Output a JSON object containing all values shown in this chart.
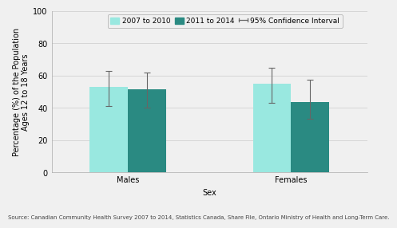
{
  "groups": [
    "Males",
    "Females"
  ],
  "series": [
    "2007 to 2010",
    "2011 to 2014"
  ],
  "values": [
    [
      53.0,
      51.5
    ],
    [
      55.0,
      43.5
    ]
  ],
  "ci_low_abs": [
    [
      41.0,
      40.0
    ],
    [
      43.0,
      33.5
    ]
  ],
  "ci_high_abs": [
    [
      63.0,
      62.0
    ],
    [
      65.0,
      57.5
    ]
  ],
  "bar_colors": [
    "#99e8e0",
    "#2a8a82"
  ],
  "bar_width": 0.35,
  "group_positions": [
    1.0,
    2.5
  ],
  "xlim": [
    0.3,
    3.2
  ],
  "ylim": [
    0,
    100
  ],
  "yticks": [
    0,
    20,
    40,
    60,
    80,
    100
  ],
  "ylabel": "Percentage (%) of the Population\nAges 12 to 18 Years",
  "xlabel": "Sex",
  "legend_labels": [
    "2007 to 2010",
    "2011 to 2014",
    "95% Confidence Interval"
  ],
  "source_text": "Source: Canadian Community Health Survey 2007 to 2014, Statistics Canada, Share File, Ontario Ministry of Health and Long-Term Care.",
  "background_color": "#f0f0f0",
  "grid_color": "#cccccc",
  "error_bar_color": "#666666",
  "axis_fontsize": 7,
  "tick_fontsize": 7,
  "legend_fontsize": 6.5,
  "source_fontsize": 5.0
}
